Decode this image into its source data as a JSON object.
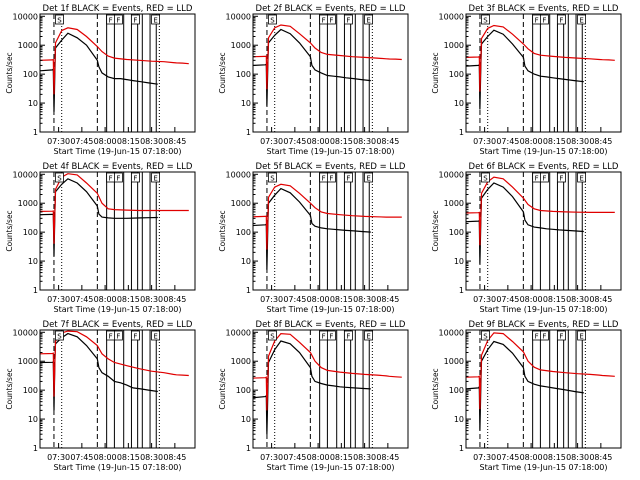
{
  "figure": {
    "ylabel": "Counts/sec",
    "xlabel": "Start Time (19-Jun-15 07:18:00)",
    "time_ticks": [
      "07:30",
      "07:45",
      "08:00",
      "08:15",
      "08:30",
      "08:45"
    ],
    "time_tick_minutes": [
      12,
      27,
      42,
      57,
      72,
      87
    ],
    "xlim_minutes": [
      0,
      100
    ],
    "y_ticks": [
      "1",
      "10",
      "100",
      "1000",
      "10000"
    ],
    "ylim": [
      1,
      12000
    ],
    "event_color": "#000000",
    "lld_color": "#e00000",
    "dashed_lines_minutes": [
      9,
      37
    ],
    "dotted_lines_minutes": [
      14,
      77
    ],
    "solid_lines_minutes": [
      43,
      48,
      54,
      59,
      63,
      66,
      71,
      75
    ],
    "box_label_minutes": [
      10,
      43,
      48,
      59,
      72
    ]
  },
  "chart_data": [
    {
      "type": "line",
      "title": "Det 1f BLACK = Events, RED = LLD",
      "box_labels": [
        "S",
        "F",
        "F",
        "F",
        "E"
      ],
      "series": [
        {
          "name": "Events",
          "x": [
            0,
            8,
            8.6,
            9,
            9.6,
            10,
            14,
            18,
            24,
            30,
            37,
            38,
            40,
            44,
            48,
            52,
            56,
            60,
            65,
            70,
            76
          ],
          "values": [
            130,
            140,
            150,
            5,
            130,
            800,
            1500,
            2600,
            1800,
            1000,
            300,
            180,
            110,
            80,
            70,
            70,
            65,
            60,
            55,
            50,
            45
          ]
        },
        {
          "name": "LLD",
          "x": [
            0,
            8,
            8.6,
            9,
            10,
            14,
            18,
            24,
            30,
            37,
            40,
            44,
            48,
            56,
            64,
            72,
            80,
            86,
            88,
            92,
            96
          ],
          "values": [
            300,
            310,
            320,
            20,
            1200,
            3200,
            4000,
            3500,
            2000,
            900,
            600,
            420,
            360,
            320,
            300,
            280,
            270,
            250,
            245,
            240,
            230
          ]
        }
      ]
    },
    {
      "type": "line",
      "title": "Det 2f BLACK = Events, RED = LLD",
      "box_labels": [
        "S",
        "F",
        "F",
        "F",
        "E"
      ],
      "series": [
        {
          "name": "Events",
          "x": [
            0,
            8,
            8.6,
            9,
            9.6,
            10,
            14,
            18,
            24,
            30,
            37,
            38,
            40,
            44,
            48,
            52,
            56,
            60,
            65,
            70,
            76
          ],
          "values": [
            200,
            210,
            220,
            8,
            250,
            1200,
            2200,
            3500,
            2500,
            1200,
            400,
            200,
            140,
            110,
            90,
            85,
            80,
            75,
            70,
            65,
            60
          ]
        },
        {
          "name": "LLD",
          "x": [
            0,
            8,
            8.6,
            9,
            10,
            14,
            18,
            24,
            30,
            37,
            40,
            44,
            48,
            56,
            64,
            72,
            80,
            86,
            88,
            92,
            96
          ],
          "values": [
            400,
            410,
            420,
            30,
            1800,
            4000,
            5000,
            4500,
            2500,
            1200,
            800,
            560,
            480,
            440,
            400,
            380,
            360,
            340,
            335,
            330,
            320
          ]
        }
      ]
    },
    {
      "type": "line",
      "title": "Det 3f BLACK = Events, RED = LLD",
      "box_labels": [
        "S",
        "F",
        "F",
        "F",
        "E"
      ],
      "series": [
        {
          "name": "Events",
          "x": [
            0,
            8,
            8.6,
            9,
            9.6,
            10,
            14,
            18,
            24,
            30,
            37,
            38,
            40,
            44,
            48,
            52,
            56,
            60,
            65,
            70,
            76
          ],
          "values": [
            190,
            200,
            210,
            6,
            220,
            1100,
            2000,
            3300,
            2400,
            1100,
            380,
            190,
            130,
            100,
            85,
            80,
            75,
            70,
            65,
            60,
            55
          ]
        },
        {
          "name": "LLD",
          "x": [
            0,
            8,
            8.6,
            9,
            10,
            14,
            18,
            24,
            30,
            37,
            40,
            44,
            48,
            56,
            64,
            72,
            80,
            86,
            88,
            92,
            96
          ],
          "values": [
            380,
            390,
            400,
            25,
            1700,
            3800,
            4800,
            4300,
            2400,
            1100,
            750,
            520,
            450,
            410,
            380,
            360,
            340,
            320,
            315,
            310,
            300
          ]
        }
      ]
    },
    {
      "type": "line",
      "title": "Det 4f BLACK = Events, RED = LLD",
      "box_labels": [
        "S",
        "F",
        "F",
        "F",
        "E"
      ],
      "series": [
        {
          "name": "Events",
          "x": [
            0,
            8,
            8.6,
            9,
            9.6,
            10,
            14,
            18,
            24,
            30,
            37,
            38,
            40,
            44,
            48,
            52,
            56,
            60,
            65,
            70,
            76
          ],
          "values": [
            400,
            410,
            420,
            15,
            500,
            2500,
            4500,
            7000,
            5000,
            2500,
            800,
            420,
            330,
            310,
            300,
            300,
            300,
            305,
            310,
            315,
            320
          ]
        },
        {
          "name": "LLD",
          "x": [
            0,
            8,
            8.6,
            9,
            10,
            14,
            18,
            24,
            30,
            37,
            40,
            44,
            48,
            56,
            64,
            72,
            80,
            86,
            88,
            92,
            96
          ],
          "values": [
            520,
            530,
            540,
            40,
            3000,
            8000,
            10500,
            9500,
            5000,
            2200,
            1000,
            640,
            600,
            580,
            560,
            560,
            560,
            560,
            560,
            560,
            560
          ]
        }
      ]
    },
    {
      "type": "line",
      "title": "Det 5f BLACK = Events, RED = LLD",
      "box_labels": [
        "S",
        "F",
        "F",
        "F",
        "E"
      ],
      "series": [
        {
          "name": "Events",
          "x": [
            0,
            8,
            8.6,
            9,
            9.6,
            10,
            14,
            18,
            24,
            30,
            37,
            38,
            40,
            44,
            48,
            52,
            56,
            60,
            65,
            70,
            76
          ],
          "values": [
            170,
            180,
            190,
            5,
            200,
            1000,
            1900,
            3200,
            2300,
            1100,
            380,
            200,
            160,
            140,
            130,
            125,
            120,
            115,
            110,
            105,
            100
          ]
        },
        {
          "name": "LLD",
          "x": [
            0,
            8,
            8.6,
            9,
            10,
            14,
            18,
            24,
            30,
            37,
            40,
            44,
            48,
            56,
            64,
            72,
            80,
            86,
            88,
            92,
            96
          ],
          "values": [
            340,
            350,
            360,
            25,
            1600,
            3600,
            4500,
            4000,
            2200,
            1000,
            700,
            500,
            440,
            400,
            370,
            350,
            340,
            330,
            330,
            330,
            330
          ]
        }
      ]
    },
    {
      "type": "line",
      "title": "Det 6f BLACK = Events, RED = LLD",
      "box_labels": [
        "S",
        "F",
        "F",
        "F",
        "E"
      ],
      "series": [
        {
          "name": "Events",
          "x": [
            0,
            8,
            8.6,
            9,
            9.6,
            10,
            14,
            18,
            24,
            30,
            37,
            38,
            40,
            44,
            48,
            52,
            56,
            60,
            65,
            70,
            76
          ],
          "values": [
            230,
            240,
            250,
            8,
            300,
            1500,
            3000,
            5000,
            3600,
            1700,
            500,
            260,
            180,
            150,
            140,
            130,
            125,
            120,
            115,
            110,
            105
          ]
        },
        {
          "name": "LLD",
          "x": [
            0,
            8,
            8.6,
            9,
            10,
            14,
            18,
            24,
            30,
            37,
            40,
            44,
            48,
            56,
            64,
            72,
            80,
            86,
            88,
            92,
            96
          ],
          "values": [
            460,
            470,
            480,
            35,
            2200,
            5500,
            8000,
            7000,
            3600,
            1500,
            900,
            640,
            560,
            520,
            500,
            490,
            480,
            480,
            480,
            480,
            480
          ]
        }
      ]
    },
    {
      "type": "line",
      "title": "Det 7f BLACK = Events, RED = LLD",
      "box_labels": [
        "S",
        "F",
        "F",
        "F",
        "E"
      ],
      "series": [
        {
          "name": "Events",
          "x": [
            0,
            8,
            8.6,
            9,
            9.6,
            10,
            14,
            18,
            24,
            30,
            37,
            38,
            40,
            44,
            48,
            52,
            56,
            60,
            65,
            70,
            76
          ],
          "values": [
            900,
            920,
            940,
            20,
            1200,
            4000,
            6500,
            9000,
            7000,
            3500,
            1200,
            600,
            400,
            300,
            200,
            180,
            150,
            120,
            110,
            100,
            90
          ]
        },
        {
          "name": "LLD",
          "x": [
            0,
            8,
            8.6,
            9,
            10,
            14,
            18,
            24,
            30,
            37,
            40,
            44,
            48,
            56,
            64,
            72,
            80,
            86,
            88,
            92,
            96
          ],
          "values": [
            1800,
            1850,
            1900,
            60,
            5000,
            9500,
            11000,
            10500,
            7000,
            3500,
            1800,
            1200,
            900,
            700,
            550,
            450,
            400,
            350,
            340,
            330,
            320
          ]
        }
      ]
    },
    {
      "type": "line",
      "title": "Det 8f BLACK = Events, RED = LLD",
      "box_labels": [
        "S",
        "F",
        "F",
        "F",
        "E"
      ],
      "series": [
        {
          "name": "Events",
          "x": [
            0,
            8,
            8.6,
            9,
            9.6,
            10,
            14,
            18,
            24,
            30,
            37,
            38,
            40,
            44,
            48,
            52,
            56,
            60,
            65,
            70,
            76
          ],
          "values": [
            55,
            60,
            65,
            3,
            100,
            900,
            2500,
            5000,
            4000,
            2000,
            600,
            300,
            200,
            170,
            150,
            140,
            130,
            125,
            120,
            115,
            110
          ]
        },
        {
          "name": "LLD",
          "x": [
            0,
            8,
            8.6,
            9,
            10,
            14,
            18,
            24,
            30,
            37,
            40,
            44,
            48,
            56,
            64,
            72,
            80,
            86,
            88,
            92,
            96
          ],
          "values": [
            260,
            270,
            280,
            20,
            1500,
            5000,
            9000,
            8500,
            4500,
            2000,
            1000,
            600,
            480,
            420,
            380,
            350,
            330,
            310,
            300,
            290,
            280
          ]
        }
      ]
    },
    {
      "type": "line",
      "title": "Det 9f BLACK = Events, RED = LLD",
      "box_labels": [
        "S",
        "F",
        "F",
        "F",
        "E"
      ],
      "series": [
        {
          "name": "Events",
          "x": [
            0,
            8,
            8.6,
            9,
            9.6,
            10,
            14,
            18,
            24,
            30,
            37,
            38,
            40,
            44,
            48,
            52,
            56,
            60,
            65,
            70,
            76
          ],
          "values": [
            110,
            120,
            130,
            4,
            160,
            1000,
            2500,
            4800,
            3800,
            1900,
            600,
            300,
            200,
            160,
            140,
            130,
            120,
            110,
            100,
            90,
            80
          ]
        },
        {
          "name": "LLD",
          "x": [
            0,
            8,
            8.6,
            9,
            10,
            14,
            18,
            24,
            30,
            37,
            40,
            44,
            48,
            56,
            64,
            72,
            80,
            86,
            88,
            92,
            96
          ],
          "values": [
            280,
            290,
            300,
            22,
            1600,
            5200,
            9500,
            9000,
            4800,
            2100,
            1000,
            620,
            500,
            440,
            400,
            370,
            350,
            330,
            320,
            310,
            300
          ]
        }
      ]
    }
  ]
}
